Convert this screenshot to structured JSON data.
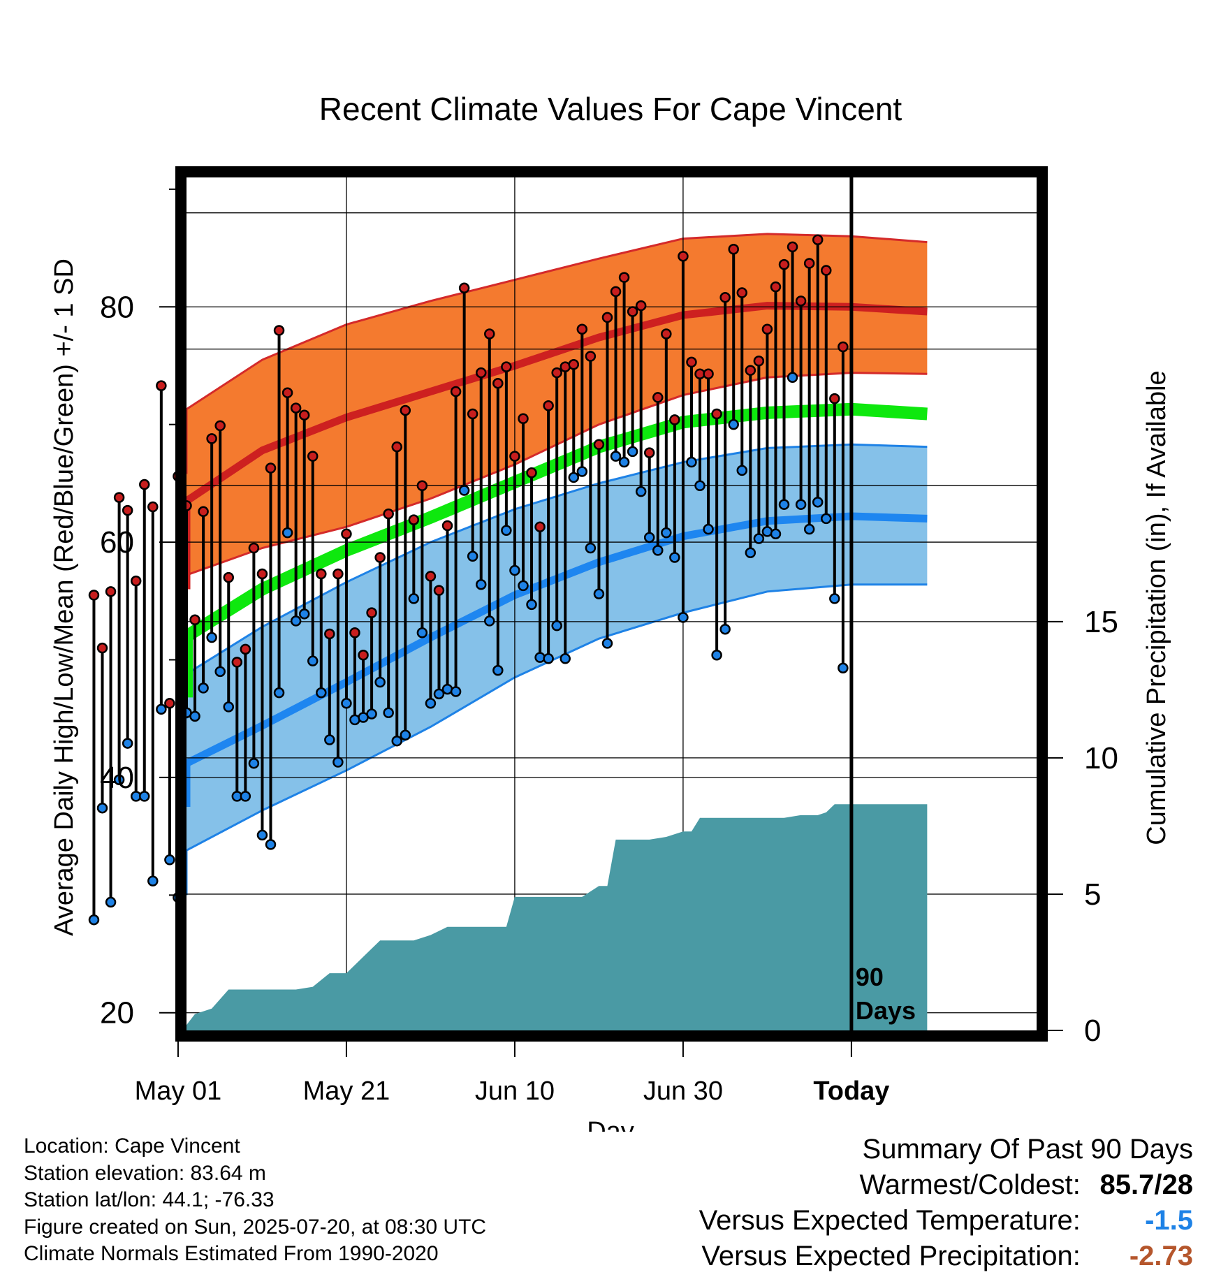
{
  "chart_data": {
    "type": "line",
    "title": "Recent Climate Values For Cape Vincent",
    "xlabel": "Day",
    "ylabel_left": "Average Daily High/Low/Mean (Red/Blue/Green) +/- 1 SD",
    "ylabel_right": "Cumulative Precipitation (in), If Available",
    "ylim_left": [
      18.5,
      91
    ],
    "ylim_right": [
      0,
      31.3
    ],
    "yticks_left": [
      20,
      40,
      60,
      80
    ],
    "yticks_right": [
      0,
      5,
      10,
      15
    ],
    "xlim_days": [
      -79,
      22
    ],
    "xticks": [
      {
        "label": "May 01",
        "day": -80
      },
      {
        "label": "May 21",
        "day": -60
      },
      {
        "label": "Jun 10",
        "day": -40
      },
      {
        "label": "Jun 30",
        "day": -20
      },
      {
        "label": "Today",
        "day": 0
      }
    ],
    "today_marker_label": [
      "90",
      "Days"
    ],
    "normals": {
      "days": [
        -90,
        -80,
        -70,
        -60,
        -50,
        -40,
        -30,
        -20,
        -10,
        0,
        9
      ],
      "high_mean": [
        56,
        63.5,
        67.8,
        70.6,
        72.8,
        75,
        77.4,
        79.3,
        80.1,
        80,
        79.6
      ],
      "high_upper": [
        65.8,
        71.3,
        75.5,
        78.5,
        80.5,
        82.3,
        84.1,
        85.8,
        86.2,
        86,
        85.5
      ],
      "high_lower": [
        55.5,
        57.2,
        59.5,
        61.3,
        63.7,
        66.6,
        70,
        72.5,
        74,
        74.4,
        74.3
      ],
      "mean_normal": [
        46.8,
        52,
        56,
        59.3,
        62.1,
        65.1,
        68.1,
        70.2,
        71,
        71.3,
        70.9
      ],
      "low_mean": [
        37.5,
        41.2,
        44.4,
        48.1,
        51.9,
        55.5,
        58.3,
        60.5,
        61.8,
        62.2,
        62
      ],
      "low_upper": [
        45,
        48.8,
        52.8,
        56.6,
        60,
        62.8,
        65,
        66.8,
        68,
        68.3,
        68.1
      ],
      "low_lower": [
        30,
        33.8,
        37.2,
        40.6,
        44.3,
        48.5,
        51.8,
        54,
        55.8,
        56.4,
        56.4
      ]
    },
    "series": [
      {
        "name": "High",
        "color": "#c81e1e",
        "values": [
          55.5,
          51.0,
          55.8,
          63.8,
          62.7,
          56.7,
          64.9,
          63.0,
          73.3,
          46.3,
          65.6,
          63.1,
          53.4,
          62.6,
          68.8,
          69.9,
          57.0,
          49.8,
          50.9,
          59.5,
          57.3,
          66.3,
          78.0,
          72.7,
          71.4,
          70.8,
          67.3,
          57.3,
          52.2,
          57.3,
          60.7,
          52.3,
          50.4,
          54.0,
          58.7,
          62.4,
          68.1,
          71.2,
          61.9,
          64.8,
          57.1,
          55.9,
          61.4,
          72.8,
          81.6,
          70.9,
          74.4,
          77.7,
          73.5,
          74.9,
          67.3,
          70.5,
          65.9,
          61.3,
          71.6,
          74.4,
          74.9,
          75.1,
          78.1,
          75.8,
          68.3,
          79.1,
          81.3,
          82.5,
          79.6,
          80.1,
          67.6,
          72.3,
          77.7,
          70.4,
          84.3,
          75.3,
          74.3,
          74.3,
          70.9,
          80.8,
          84.9,
          81.2,
          74.6,
          75.4,
          78.1,
          81.7,
          83.6,
          85.1,
          80.5,
          83.7,
          85.7,
          83.1,
          72.2,
          76.6
        ]
      },
      {
        "name": "Low",
        "color": "#1e82e6",
        "values": [
          27.9,
          37.4,
          29.4,
          39.8,
          42.9,
          38.4,
          38.4,
          31.2,
          45.8,
          33.0,
          29.8,
          45.5,
          45.2,
          47.6,
          51.9,
          49.0,
          46.0,
          38.4,
          38.4,
          41.2,
          35.1,
          34.3,
          47.2,
          60.8,
          53.3,
          53.9,
          49.9,
          47.2,
          43.2,
          41.3,
          46.3,
          44.9,
          45.1,
          45.4,
          48.1,
          45.5,
          43.1,
          43.6,
          55.2,
          52.3,
          46.3,
          47.1,
          47.5,
          47.3,
          64.4,
          58.8,
          56.4,
          53.3,
          49.1,
          61.0,
          57.6,
          56.3,
          54.7,
          50.2,
          50.1,
          52.9,
          50.1,
          65.5,
          66.0,
          59.5,
          55.6,
          51.4,
          67.3,
          66.8,
          67.7,
          64.3,
          60.4,
          59.3,
          60.8,
          58.7,
          53.6,
          66.8,
          64.8,
          61.1,
          50.4,
          52.6,
          70.0,
          66.1,
          59.1,
          60.3,
          60.9,
          60.7,
          63.2,
          74.0,
          63.2,
          61.1,
          63.4,
          62.0,
          55.2,
          49.3
        ]
      }
    ],
    "precipitation": {
      "days": [
        -90,
        -86,
        -84,
        -82,
        -80,
        -78,
        -76,
        -74,
        -72,
        -70,
        -68,
        -66,
        -64,
        -62,
        -60,
        -58,
        -56,
        -54,
        -52,
        -50,
        -48,
        -46,
        -44,
        -42,
        -41,
        -40,
        -38,
        -36,
        -34,
        -32,
        -30,
        -29,
        -28,
        -26,
        -24,
        -22,
        -20,
        -19,
        -18,
        -16,
        -14,
        -12,
        -10,
        -8,
        -6,
        -4,
        -3,
        -2,
        0,
        9
      ],
      "values": [
        0,
        0,
        0.2,
        0.2,
        0.2,
        0.6,
        0.8,
        1.5,
        1.5,
        1.5,
        1.5,
        1.5,
        1.6,
        2.1,
        2.1,
        2.7,
        3.3,
        3.3,
        3.3,
        3.5,
        3.8,
        3.8,
        3.8,
        3.8,
        3.8,
        4.9,
        4.9,
        4.9,
        4.9,
        4.9,
        5.3,
        5.3,
        7.0,
        7.0,
        7.0,
        7.1,
        7.3,
        7.3,
        7.8,
        7.8,
        7.8,
        7.8,
        7.8,
        7.8,
        7.9,
        7.9,
        8.0,
        8.3,
        8.3,
        8.3
      ]
    }
  },
  "footer": {
    "location": "Location: Cape Vincent",
    "elevation": "Station elevation: 83.64 m",
    "latlon": "Station lat/lon: 44.1; -76.33",
    "created": "Figure created on Sun, 2025-07-20, at 08:30 UTC",
    "normals_note": "Climate Normals Estimated From 1990-2020"
  },
  "summary": {
    "heading": "Summary Of Past 90 Days",
    "warmest_label": "Warmest/Coldest:",
    "warmest_value": "85.7/28",
    "temp_label": "Versus Expected Temperature:",
    "temp_value": "-1.5",
    "temp_color": "#1e82e6",
    "precip_label": "Versus Expected Precipitation:",
    "precip_value": "-2.73",
    "precip_color": "#b5562c"
  }
}
